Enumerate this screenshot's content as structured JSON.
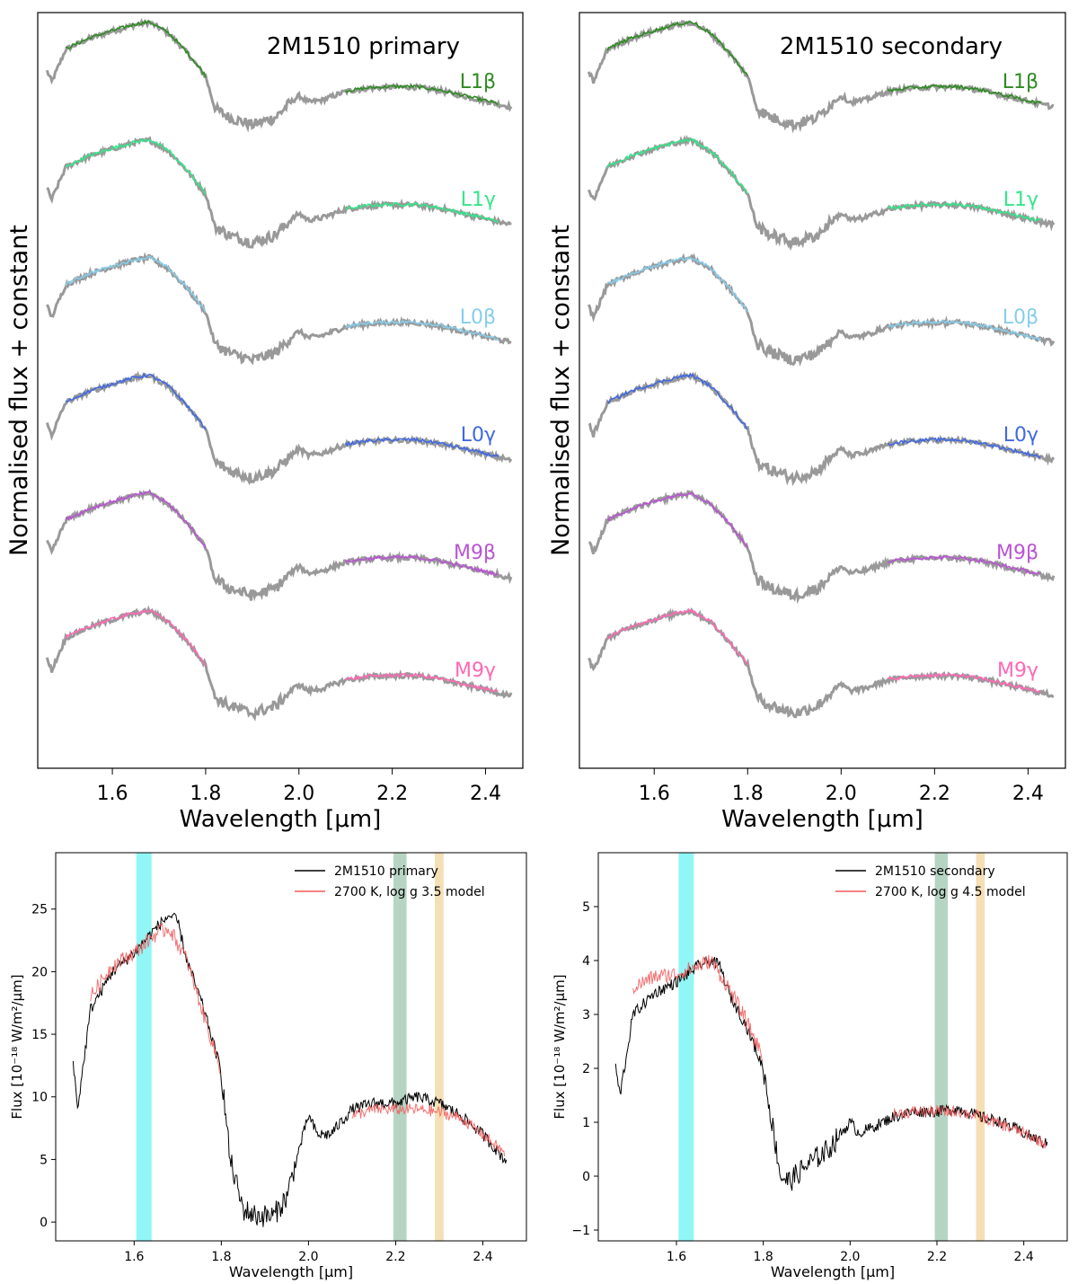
{
  "chart_data": [
    {
      "type": "line",
      "title": "2M1510 primary",
      "xlabel": "Wavelength [μm]",
      "ylabel": "Normalised flux + constant",
      "xlim": [
        1.44,
        2.48
      ],
      "xticks": [
        "1.6",
        "1.8",
        "2.0",
        "2.2",
        "2.4"
      ],
      "xtick_values": [
        1.6,
        1.8,
        2.0,
        2.2,
        2.4
      ],
      "observed_color": "#999999",
      "bands_um": [
        [
          1.5,
          1.8
        ],
        [
          2.1,
          2.43
        ]
      ],
      "series": [
        {
          "name": "L1β",
          "color": "#2e8b22",
          "offset": 5
        },
        {
          "name": "L1γ",
          "color": "#34e68a",
          "offset": 4
        },
        {
          "name": "L0β",
          "color": "#87ceeb",
          "offset": 3
        },
        {
          "name": "L0γ",
          "color": "#4169e1",
          "offset": 2
        },
        {
          "name": "M9β",
          "color": "#b954d3",
          "offset": 1
        },
        {
          "name": "M9γ",
          "color": "#ff69b4",
          "offset": 0
        }
      ]
    },
    {
      "type": "line",
      "title": "2M1510 secondary",
      "xlabel": "Wavelength [μm]",
      "ylabel": "Normalised flux + constant",
      "xlim": [
        1.44,
        2.48
      ],
      "xticks": [
        "1.6",
        "1.8",
        "2.0",
        "2.2",
        "2.4"
      ],
      "xtick_values": [
        1.6,
        1.8,
        2.0,
        2.2,
        2.4
      ],
      "observed_color": "#999999",
      "bands_um": [
        [
          1.5,
          1.8
        ],
        [
          2.1,
          2.43
        ]
      ],
      "series": [
        {
          "name": "L1β",
          "color": "#2e8b22",
          "offset": 5
        },
        {
          "name": "L1γ",
          "color": "#34e68a",
          "offset": 4
        },
        {
          "name": "L0β",
          "color": "#87ceeb",
          "offset": 3
        },
        {
          "name": "L0γ",
          "color": "#4169e1",
          "offset": 2
        },
        {
          "name": "M9β",
          "color": "#b954d3",
          "offset": 1
        },
        {
          "name": "M9γ",
          "color": "#ff69b4",
          "offset": 0
        }
      ]
    },
    {
      "type": "line",
      "title": "",
      "xlabel": "Wavelength [μm]",
      "ylabel": "Flux [10⁻¹⁸ W/m²/μm]",
      "xlim": [
        1.42,
        2.5
      ],
      "ylim": [
        -1.5,
        29.5
      ],
      "xticks": [
        "1.6",
        "1.8",
        "2.0",
        "2.2",
        "2.4"
      ],
      "xtick_values": [
        1.6,
        1.8,
        2.0,
        2.2,
        2.4
      ],
      "yticks": [
        "0",
        "5",
        "10",
        "15",
        "20",
        "25"
      ],
      "ytick_values": [
        0,
        5,
        10,
        15,
        20,
        25
      ],
      "legend": "top-right",
      "shaded_bands": [
        {
          "from": 1.605,
          "to": 1.64,
          "color": "#7ef5f5"
        },
        {
          "from": 2.195,
          "to": 2.225,
          "color": "#a9cdb8"
        },
        {
          "from": 2.29,
          "to": 2.31,
          "color": "#f3d9a8"
        }
      ],
      "series": [
        {
          "name": "2M1510 primary",
          "color": "#000000",
          "x": [
            1.46,
            1.47,
            1.5,
            1.55,
            1.6,
            1.65,
            1.68,
            1.7,
            1.72,
            1.76,
            1.8,
            1.82,
            1.85,
            1.88,
            1.92,
            1.95,
            1.98,
            2.0,
            2.02,
            2.05,
            2.1,
            2.15,
            2.2,
            2.25,
            2.3,
            2.35,
            2.4,
            2.45
          ],
          "y": [
            13,
            9,
            17,
            20,
            21.5,
            23.5,
            24.5,
            24,
            21,
            17,
            12,
            5,
            1,
            0.5,
            0.5,
            2,
            6,
            8.5,
            7,
            7,
            9,
            9.5,
            9.5,
            10,
            9.5,
            8.5,
            7,
            5
          ]
        },
        {
          "name": "2700 K, log g 3.5 model",
          "color": "#f05a5a",
          "x": [
            1.5,
            1.55,
            1.6,
            1.65,
            1.68,
            1.72,
            1.76,
            1.8,
            2.1,
            2.15,
            2.2,
            2.25,
            2.3,
            2.35,
            2.4,
            2.45
          ],
          "y": [
            18,
            20.5,
            21.5,
            23,
            23.5,
            21,
            16.5,
            12,
            8.5,
            9,
            9,
            9,
            8.8,
            8.3,
            7,
            5.5
          ]
        }
      ]
    },
    {
      "type": "line",
      "title": "",
      "xlabel": "Wavelength [μm]",
      "ylabel": "Flux [10⁻¹⁸ W/m²/μm]",
      "xlim": [
        1.42,
        2.5
      ],
      "ylim": [
        -1.2,
        6.0
      ],
      "xticks": [
        "1.6",
        "1.8",
        "2.0",
        "2.2",
        "2.4"
      ],
      "xtick_values": [
        1.6,
        1.8,
        2.0,
        2.2,
        2.4
      ],
      "yticks": [
        "−1",
        "0",
        "1",
        "2",
        "3",
        "4",
        "5"
      ],
      "ytick_values": [
        -1,
        0,
        1,
        2,
        3,
        4,
        5
      ],
      "legend": "top-right",
      "shaded_bands": [
        {
          "from": 1.605,
          "to": 1.64,
          "color": "#7ef5f5"
        },
        {
          "from": 2.195,
          "to": 2.225,
          "color": "#a9cdb8"
        },
        {
          "from": 2.29,
          "to": 2.31,
          "color": "#f3d9a8"
        }
      ],
      "series": [
        {
          "name": "2M1510 secondary",
          "color": "#000000",
          "x": [
            1.46,
            1.47,
            1.5,
            1.55,
            1.6,
            1.65,
            1.68,
            1.7,
            1.72,
            1.76,
            1.8,
            1.82,
            1.84,
            1.86,
            1.9,
            1.95,
            1.98,
            2.0,
            2.02,
            2.05,
            2.1,
            2.15,
            2.2,
            2.25,
            2.3,
            2.35,
            2.4,
            2.45
          ],
          "y": [
            2,
            1.5,
            3,
            3.4,
            3.6,
            3.9,
            4.0,
            3.9,
            3.4,
            2.8,
            2.0,
            1.0,
            0.0,
            -0.1,
            0.2,
            0.5,
            0.8,
            1.0,
            0.8,
            0.9,
            1.1,
            1.2,
            1.2,
            1.25,
            1.1,
            1.0,
            0.8,
            0.6
          ]
        },
        {
          "name": "2700 K, log g 4.5 model",
          "color": "#f05a5a",
          "x": [
            1.5,
            1.55,
            1.6,
            1.65,
            1.68,
            1.72,
            1.76,
            1.8,
            2.1,
            2.15,
            2.2,
            2.25,
            2.3,
            2.35,
            2.4,
            2.45
          ],
          "y": [
            3.5,
            3.7,
            3.75,
            3.9,
            4.0,
            3.5,
            2.9,
            2.2,
            1.15,
            1.2,
            1.2,
            1.2,
            1.1,
            0.95,
            0.8,
            0.6
          ]
        }
      ]
    }
  ]
}
